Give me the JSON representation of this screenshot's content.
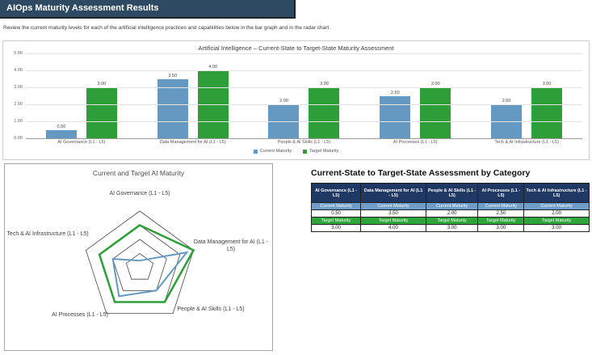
{
  "header": {
    "title": "AIOps Maturity Assessment Results"
  },
  "subtitle": "Review the current maturity levels for each of the artificial intelligence practices and capabilities below in the bar graph and in the radar chart.",
  "colors": {
    "header_bar": "#2e4a63",
    "current_series": "#6699c2",
    "target_series": "#2e9e38",
    "table_header_bg": "#1f3864",
    "table_current_row_bg": "#6e9dc9",
    "table_target_row_bg": "#2fa63c",
    "radar_grid": "#4a4a4a"
  },
  "chart_data": [
    {
      "type": "bar",
      "title": "Artificial Intelligence – Current-State to Target-State Maturity Assessment",
      "categories": [
        "AI Governance (L1 - L5)",
        "Data Management for AI (L1 - L5)",
        "People & AI Skills (L1 - L5)",
        "AI Processes (L1 - L5)",
        "Tech & AI Infrastructure (L1 - L5)"
      ],
      "series": [
        {
          "name": "Current Maturity",
          "values": [
            0.5,
            3.5,
            2.0,
            2.5,
            2.0
          ]
        },
        {
          "name": "Target Maturity",
          "values": [
            3.0,
            4.0,
            3.0,
            3.0,
            3.0
          ]
        }
      ],
      "ylim": [
        0,
        5
      ],
      "yticks": [
        "5.00",
        "4.00",
        "3.00",
        "2.00",
        "1.00",
        "0.00"
      ],
      "grid": true,
      "legend_position": "bottom",
      "value_label_format": "0.00"
    },
    {
      "type": "radar",
      "title": "Current and Target AI Maturity",
      "categories": [
        "AI Governance (L1 - L5)",
        "Data Management for AI (L1 - L5)",
        "People & AI Skills (L1 - L5)",
        "AI Processes (L1 - L5)",
        "Tech & AI Infrastructure (L1 - L5)"
      ],
      "series": [
        {
          "name": "Current Maturity",
          "values": [
            0.5,
            3.5,
            2.0,
            2.5,
            2.0
          ]
        },
        {
          "name": "Target Maturity",
          "values": [
            3.0,
            4.0,
            3.0,
            3.0,
            3.0
          ]
        }
      ],
      "max": 4,
      "rings": 4,
      "legend_position": "none"
    }
  ],
  "table": {
    "title": "Current-State to Target-State Assessment by Category",
    "columns": [
      "AI Governance (L1 - L5)",
      "Data Management for AI (L1 - L5)",
      "People & AI Skills (L1 - L5)",
      "AI Processes (L1 - L5)",
      "Tech & AI Infrastructure (L1 - L5)"
    ],
    "rows": [
      {
        "label": "Current Maturity",
        "values": [
          "0.50",
          "3.50",
          "2.00",
          "2.50",
          "2.00"
        ]
      },
      {
        "label": "Target Maturity",
        "values": [
          "3.00",
          "4.00",
          "3.00",
          "3.00",
          "3.00"
        ]
      }
    ]
  }
}
